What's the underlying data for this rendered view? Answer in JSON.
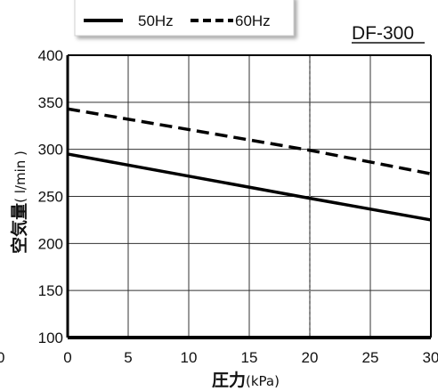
{
  "model_label": "DF-300",
  "chart_data": {
    "type": "line",
    "xlabel": "圧力",
    "xlabel_unit": "(kPa)",
    "ylabel": "空気量",
    "ylabel_unit": "( l/min )",
    "xlim": [
      0,
      30
    ],
    "ylim": [
      100,
      400
    ],
    "x_ticks": [
      "0",
      "5",
      "10",
      "15",
      "20",
      "25",
      "30"
    ],
    "y_ticks": [
      "100",
      "150",
      "200",
      "250",
      "300",
      "350",
      "400"
    ],
    "extra_x_tick": "0",
    "grid": true,
    "reference_x": 20,
    "legend_position": "top",
    "series": [
      {
        "name": "50Hz",
        "style": "solid",
        "x": [
          0,
          20,
          30
        ],
        "y": [
          295,
          248,
          225
        ]
      },
      {
        "name": "60Hz",
        "style": "dashed",
        "x": [
          0,
          20,
          30
        ],
        "y": [
          343,
          299,
          274
        ]
      }
    ]
  }
}
